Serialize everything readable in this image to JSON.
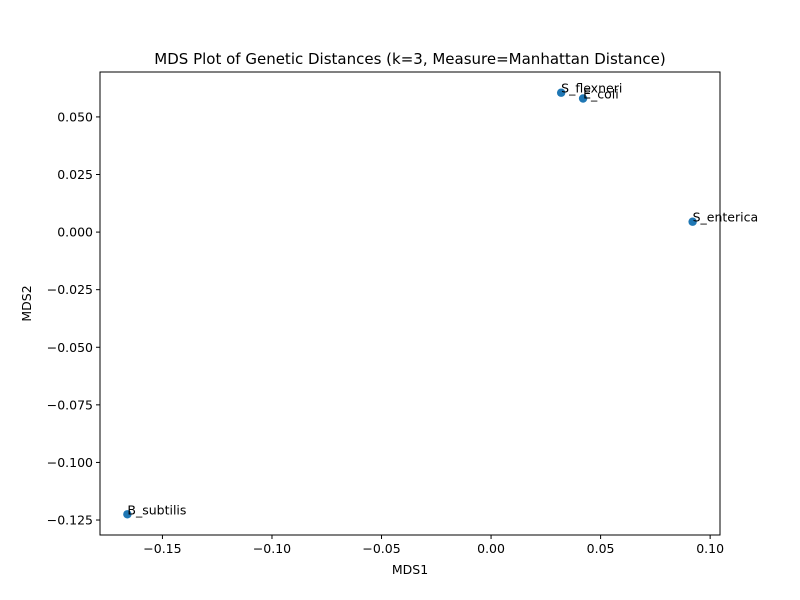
{
  "chart_data": {
    "type": "scatter",
    "title": "MDS Plot of Genetic Distances (k=3, Measure=Manhattan Distance)",
    "xlabel": "MDS1",
    "ylabel": "MDS2",
    "xlim": [
      -0.1785,
      0.1045
    ],
    "ylim": [
      -0.1315,
      0.0695
    ],
    "x_ticks": [
      -0.15,
      -0.1,
      -0.05,
      0.0,
      0.05,
      0.1
    ],
    "x_tick_labels": [
      "−0.15",
      "−0.10",
      "−0.05",
      "0.00",
      "0.05",
      "0.10"
    ],
    "y_ticks": [
      0.05,
      0.025,
      0.0,
      -0.025,
      -0.05,
      -0.075,
      -0.1,
      -0.125
    ],
    "y_tick_labels": [
      "0.050",
      "0.025",
      "0.000",
      "−0.025",
      "−0.050",
      "−0.075",
      "−0.100",
      "−0.125"
    ],
    "points": [
      {
        "label": "S_flexneri",
        "x": 0.032,
        "y": 0.0605
      },
      {
        "label": "E_coli",
        "x": 0.042,
        "y": 0.058
      },
      {
        "label": "S_enterica",
        "x": 0.092,
        "y": 0.0045
      },
      {
        "label": "B_subtilis",
        "x": -0.166,
        "y": -0.1225
      }
    ],
    "marker_color": "#1f77b4",
    "grid": false,
    "legend": "none"
  }
}
